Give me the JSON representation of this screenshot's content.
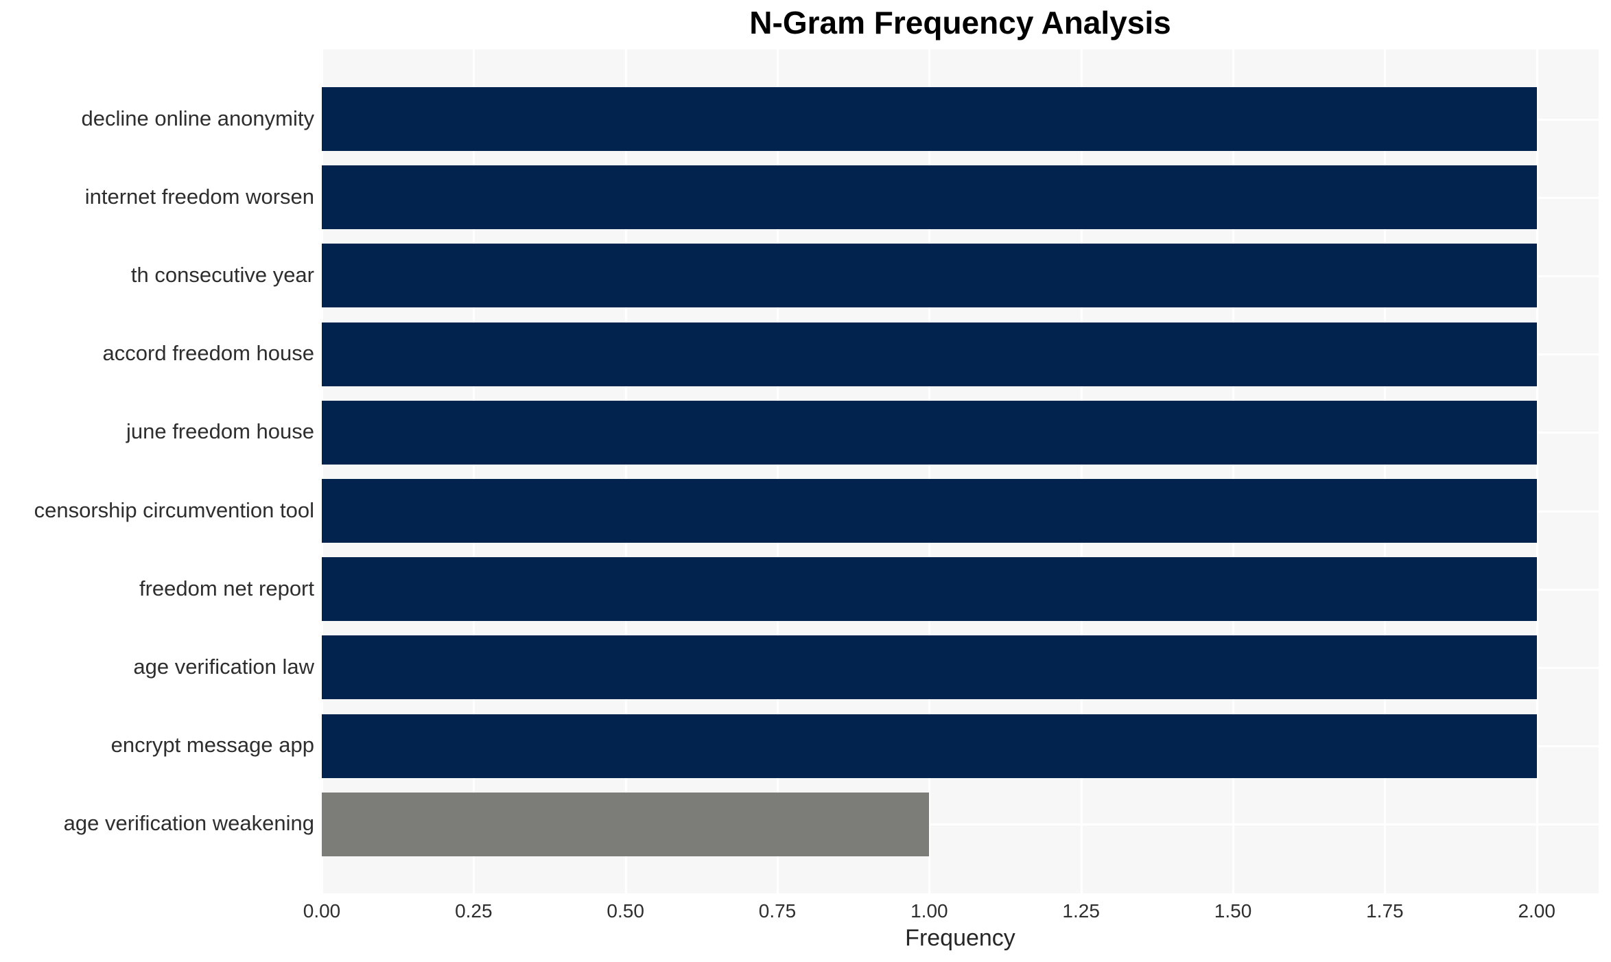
{
  "chart_data": {
    "type": "bar",
    "orientation": "horizontal",
    "title": "N-Gram Frequency Analysis",
    "xlabel": "Frequency",
    "ylabel": "",
    "categories": [
      "decline online anonymity",
      "internet freedom worsen",
      "th consecutive year",
      "accord freedom house",
      "june freedom house",
      "censorship circumvention tool",
      "freedom net report",
      "age verification law",
      "encrypt message app",
      "age verification weakening"
    ],
    "values": [
      2,
      2,
      2,
      2,
      2,
      2,
      2,
      2,
      2,
      1
    ],
    "bar_colors": [
      "#02234d",
      "#02234d",
      "#02234d",
      "#02234d",
      "#02234d",
      "#02234d",
      "#02234d",
      "#02234d",
      "#02234d",
      "#7c7c78"
    ],
    "xlim": [
      0,
      2.102
    ],
    "xticks": [
      0,
      0.25,
      0.5,
      0.75,
      1,
      1.25,
      1.5,
      1.75,
      2
    ],
    "xtick_labels": [
      "0.00",
      "0.25",
      "0.50",
      "0.75",
      "1.00",
      "1.25",
      "1.50",
      "1.75",
      "2.00"
    ],
    "grid": true,
    "legend": "none",
    "colors": {
      "plot_background": "#f7f7f7",
      "gridline": "#ffffff",
      "figure_background": "#ffffff",
      "title_color": "#000000",
      "tick_label_color": "#2e2e2e",
      "axis_label_color": "#262626"
    }
  }
}
